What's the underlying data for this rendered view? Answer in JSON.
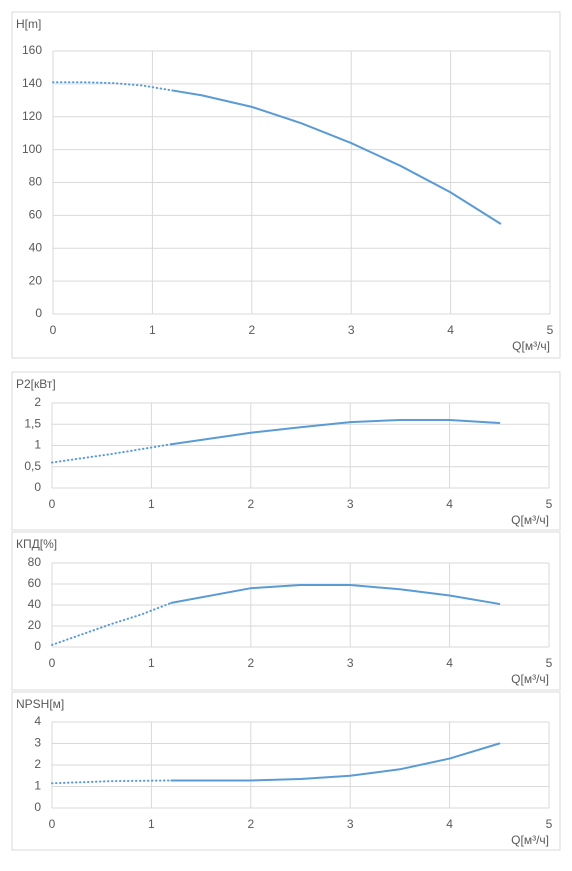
{
  "chart_data": [
    {
      "type": "line",
      "y_label": "H[m]",
      "x_label": "Q[м³/ч]",
      "xlim": [
        0,
        5
      ],
      "xticks": [
        0,
        1,
        2,
        3,
        4,
        5
      ],
      "ylim": [
        0,
        160
      ],
      "yticks": [
        0,
        20,
        40,
        60,
        80,
        100,
        120,
        140,
        160
      ],
      "grid": true,
      "series": [
        {
          "color": "#5b9bd5",
          "style": "dotted",
          "x": [
            0,
            0.3,
            0.6,
            0.9,
            1.2
          ],
          "values": [
            141,
            141,
            140.5,
            139,
            136
          ]
        },
        {
          "color": "#5b9bd5",
          "style": "solid",
          "x": [
            1.2,
            1.5,
            2,
            2.5,
            3,
            3.5,
            4,
            4.5
          ],
          "values": [
            136,
            133,
            126,
            116,
            104,
            90,
            74,
            55
          ]
        }
      ]
    },
    {
      "type": "line",
      "y_label": "P2[кВт]",
      "x_label": "Q[м³/ч]",
      "xlim": [
        0,
        5
      ],
      "xticks": [
        0,
        1,
        2,
        3,
        4,
        5
      ],
      "ylim": [
        0,
        2
      ],
      "yticks": [
        0,
        {
          "value": 0.5,
          "label": "0,5"
        },
        1,
        {
          "value": 1.5,
          "label": "1,5"
        },
        2
      ],
      "grid": true,
      "series": [
        {
          "color": "#5b9bd5",
          "style": "dotted",
          "x": [
            0,
            0.6,
            1.2
          ],
          "values": [
            0.6,
            0.8,
            1.03
          ]
        },
        {
          "color": "#5b9bd5",
          "style": "solid",
          "x": [
            1.2,
            2,
            2.5,
            3,
            3.5,
            4,
            4.5
          ],
          "values": [
            1.03,
            1.3,
            1.43,
            1.55,
            1.6,
            1.6,
            1.53
          ]
        }
      ]
    },
    {
      "type": "line",
      "y_label": "КПД[%]",
      "x_label": "Q[м³/ч]",
      "xlim": [
        0,
        5
      ],
      "xticks": [
        0,
        1,
        2,
        3,
        4,
        5
      ],
      "ylim": [
        0,
        80
      ],
      "yticks": [
        0,
        20,
        40,
        60,
        80
      ],
      "grid": true,
      "series": [
        {
          "color": "#5b9bd5",
          "style": "dotted",
          "x": [
            0,
            0.3,
            0.6,
            0.9,
            1.2
          ],
          "values": [
            2,
            12,
            22,
            31,
            42
          ]
        },
        {
          "color": "#5b9bd5",
          "style": "solid",
          "x": [
            1.2,
            2,
            2.5,
            3,
            3.5,
            4,
            4.5
          ],
          "values": [
            42,
            56,
            59,
            59,
            55,
            49,
            41
          ]
        }
      ]
    },
    {
      "type": "line",
      "y_label": "NPSH[м]",
      "x_label": "Q[м³/ч]",
      "xlim": [
        0,
        5
      ],
      "xticks": [
        0,
        1,
        2,
        3,
        4,
        5
      ],
      "ylim": [
        0,
        4
      ],
      "yticks": [
        0,
        1,
        2,
        3,
        4
      ],
      "grid": true,
      "series": [
        {
          "color": "#5b9bd5",
          "style": "dotted",
          "x": [
            0,
            0.6,
            1.2
          ],
          "values": [
            1.15,
            1.25,
            1.28
          ]
        },
        {
          "color": "#5b9bd5",
          "style": "solid",
          "x": [
            1.2,
            2,
            2.5,
            3,
            3.5,
            4,
            4.5
          ],
          "values": [
            1.28,
            1.28,
            1.35,
            1.5,
            1.8,
            2.3,
            3.0
          ]
        }
      ]
    }
  ]
}
